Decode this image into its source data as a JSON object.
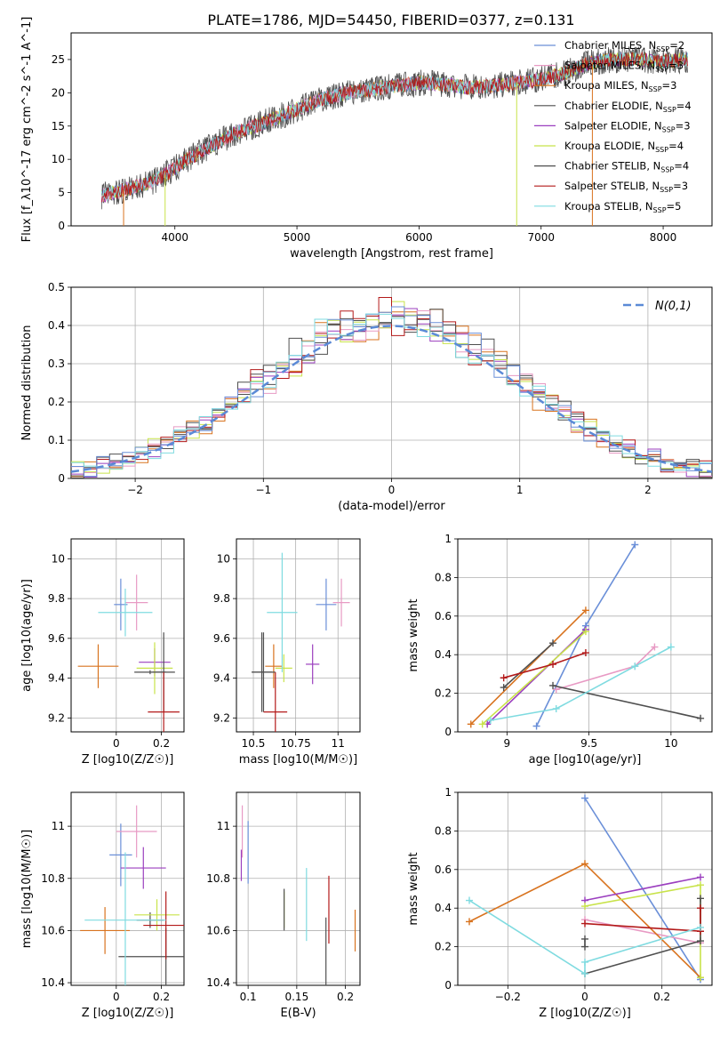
{
  "figure_title": "PLATE=1786, MJD=54450, FIBERID=0377, z=0.131",
  "models": [
    {
      "name": "Chabrier MILES",
      "nssp": "2",
      "color": "#6a8fd8"
    },
    {
      "name": "Salpeter MILES",
      "nssp": "3",
      "color": "#e89ac4"
    },
    {
      "name": "Kroupa MILES",
      "nssp": "3",
      "color": "#d8731f"
    },
    {
      "name": "Chabrier ELODIE",
      "nssp": "4",
      "color": "#4f4f4f"
    },
    {
      "name": "Salpeter ELODIE",
      "nssp": "3",
      "color": "#9b3fbf"
    },
    {
      "name": "Kroupa ELODIE",
      "nssp": "4",
      "color": "#c8e34a"
    },
    {
      "name": "Chabrier STELIB",
      "nssp": "4",
      "color": "#4f4f4f"
    },
    {
      "name": "Salpeter STELIB",
      "nssp": "3",
      "color": "#b31a1a"
    },
    {
      "name": "Kroupa STELIB",
      "nssp": "5",
      "color": "#7fdbe0"
    }
  ],
  "chart_data": [
    {
      "id": "spectrum",
      "type": "line",
      "xlabel": "wavelength [Angstrom, rest frame]",
      "ylabel": "Flux [f_λ10^-17 erg cm^-2 s^-1 A^-1]",
      "xlim": [
        3150,
        8400
      ],
      "ylim": [
        0,
        29
      ],
      "xticks": [
        4000,
        5000,
        6000,
        7000,
        8000
      ],
      "yticks": [
        0,
        5,
        10,
        15,
        20,
        25
      ],
      "legend": "upper right",
      "continuum": [
        [
          3400,
          4.5
        ],
        [
          3600,
          5.5
        ],
        [
          3800,
          6.5
        ],
        [
          3950,
          8
        ],
        [
          4100,
          10
        ],
        [
          4300,
          12
        ],
        [
          4500,
          14
        ],
        [
          4800,
          16
        ],
        [
          5000,
          17.5
        ],
        [
          5200,
          19
        ],
        [
          5400,
          20
        ],
        [
          5600,
          20.5
        ],
        [
          5800,
          21
        ],
        [
          6000,
          21.5
        ],
        [
          6200,
          21.3
        ],
        [
          6400,
          20.8
        ],
        [
          6600,
          21
        ],
        [
          6800,
          21.5
        ],
        [
          7000,
          22
        ],
        [
          7200,
          23
        ],
        [
          7400,
          24.5
        ],
        [
          7600,
          25
        ],
        [
          7800,
          25
        ],
        [
          8000,
          24.7
        ],
        [
          8200,
          25
        ]
      ],
      "series_note": ""
    },
    {
      "id": "residuals",
      "type": "line",
      "xlabel": "(data-model)/error",
      "ylabel": "Normed distribution",
      "xlim": [
        -2.5,
        2.5
      ],
      "ylim": [
        0,
        0.5
      ],
      "xticks": [
        -2,
        -1,
        0,
        1,
        2
      ],
      "yticks": [
        0.0,
        0.1,
        0.2,
        0.3,
        0.4,
        0.5
      ],
      "legend": "upper right",
      "reference_label": "N(0,1)",
      "reference_color": "#5b8ad6"
    },
    {
      "id": "age_vs_Z",
      "type": "scatter",
      "xlabel": "Z [log10(Z/Z☉)]",
      "ylabel": "age  [log10(age/yr)]",
      "xlim": [
        -0.2,
        0.3
      ],
      "ylim": [
        9.13,
        10.1
      ],
      "xticks": [
        0.0,
        0.2
      ],
      "yticks": [
        9.2,
        9.4,
        9.6,
        9.8,
        10.0
      ],
      "points": [
        {
          "model": 0,
          "x": 0.02,
          "y": 9.77,
          "xerr": 0.03,
          "yerr": 0.13
        },
        {
          "model": 1,
          "x": 0.09,
          "y": 9.78,
          "xerr": 0.05,
          "yerr": 0.14
        },
        {
          "model": 2,
          "x": -0.08,
          "y": 9.46,
          "xerr": 0.09,
          "yerr": 0.11
        },
        {
          "model": 3,
          "x": 0.15,
          "y": 9.43,
          "xerr": 0.07,
          "yerr": 0.01
        },
        {
          "model": 4,
          "x": 0.17,
          "y": 9.48,
          "xerr": 0.07,
          "yerr": 0.07
        },
        {
          "model": 5,
          "x": 0.17,
          "y": 9.45,
          "xerr": 0.08,
          "yerr": 0.13
        },
        {
          "model": 6,
          "x": 0.21,
          "y": 9.43,
          "xerr": 0.05,
          "yerr": 0.2
        },
        {
          "model": 7,
          "x": 0.21,
          "y": 9.23,
          "xerr": 0.07,
          "yerr": 0.2
        },
        {
          "model": 8,
          "x": 0.04,
          "y": 9.73,
          "xerr": 0.12,
          "yerr": 0.12
        }
      ]
    },
    {
      "id": "age_vs_mass",
      "type": "scatter",
      "xlabel": "mass [log10(M/M☉)]",
      "ylabel": "",
      "xlim": [
        10.4,
        11.13
      ],
      "ylim": [
        9.13,
        10.1
      ],
      "xticks": [
        10.5,
        10.75,
        11.0
      ],
      "yticks": [
        9.2,
        9.4,
        9.6,
        9.8,
        10.0
      ],
      "points": [
        {
          "model": 0,
          "x": 10.93,
          "y": 9.77,
          "xerr": 0.06,
          "yerr": 0.13
        },
        {
          "model": 1,
          "x": 11.02,
          "y": 9.78,
          "xerr": 0.05,
          "yerr": 0.12
        },
        {
          "model": 2,
          "x": 10.62,
          "y": 9.46,
          "xerr": 0.05,
          "yerr": 0.11
        },
        {
          "model": 3,
          "x": 10.55,
          "y": 9.43,
          "xerr": 0.06,
          "yerr": 0.2
        },
        {
          "model": 4,
          "x": 10.85,
          "y": 9.47,
          "xerr": 0.04,
          "yerr": 0.1
        },
        {
          "model": 5,
          "x": 10.68,
          "y": 9.45,
          "xerr": 0.05,
          "yerr": 0.07
        },
        {
          "model": 6,
          "x": 10.56,
          "y": 9.43,
          "xerr": 0.07,
          "yerr": 0.2
        },
        {
          "model": 7,
          "x": 10.63,
          "y": 9.23,
          "xerr": 0.07,
          "yerr": 0.2
        },
        {
          "model": 8,
          "x": 10.67,
          "y": 9.73,
          "xerr": 0.09,
          "yerr": 0.3
        }
      ]
    },
    {
      "id": "weight_vs_age",
      "type": "line",
      "xlabel": "age  [log10(age/yr)]",
      "ylabel": "mass weight",
      "xlim": [
        8.7,
        10.25
      ],
      "ylim": [
        0.0,
        1.0
      ],
      "xticks": [
        9.0,
        9.5,
        10.0
      ],
      "yticks": [
        0.0,
        0.2,
        0.4,
        0.6,
        0.8,
        1.0
      ],
      "series": [
        {
          "model": 0,
          "points": [
            [
              9.18,
              0.03
            ],
            [
              9.48,
              0.55
            ],
            [
              9.78,
              0.97
            ]
          ]
        },
        {
          "model": 1,
          "points": [
            [
              9.3,
              0.22
            ],
            [
              9.78,
              0.34
            ],
            [
              9.9,
              0.44
            ]
          ]
        },
        {
          "model": 2,
          "points": [
            [
              8.78,
              0.04
            ],
            [
              9.48,
              0.63
            ]
          ]
        },
        {
          "model": 3,
          "points": [
            [
              8.98,
              0.23
            ],
            [
              9.28,
              0.46
            ]
          ]
        },
        {
          "model": 4,
          "points": [
            [
              8.88,
              0.04
            ],
            [
              9.48,
              0.53
            ]
          ]
        },
        {
          "model": 5,
          "points": [
            [
              8.85,
              0.04
            ],
            [
              9.48,
              0.52
            ]
          ]
        },
        {
          "model": 6,
          "points": [
            [
              9.28,
              0.24
            ],
            [
              10.18,
              0.07
            ]
          ]
        },
        {
          "model": 7,
          "points": [
            [
              8.98,
              0.28
            ],
            [
              9.28,
              0.35
            ],
            [
              9.48,
              0.41
            ]
          ]
        },
        {
          "model": 8,
          "points": [
            [
              8.9,
              0.06
            ],
            [
              9.3,
              0.12
            ],
            [
              9.78,
              0.34
            ],
            [
              10.0,
              0.44
            ]
          ]
        }
      ]
    },
    {
      "id": "mass_vs_Z",
      "type": "scatter",
      "xlabel": "Z [log10(Z/Z☉)]",
      "ylabel": "mass [log10(M/M☉)]",
      "xlim": [
        -0.2,
        0.3
      ],
      "ylim": [
        10.39,
        11.13
      ],
      "xticks": [
        0.0,
        0.2
      ],
      "yticks": [
        10.4,
        10.6,
        10.8,
        11.0
      ],
      "points": [
        {
          "model": 0,
          "x": 0.02,
          "y": 10.89,
          "xerr": 0.05,
          "yerr": 0.12
        },
        {
          "model": 1,
          "x": 0.09,
          "y": 10.98,
          "xerr": 0.09,
          "yerr": 0.1
        },
        {
          "model": 2,
          "x": -0.05,
          "y": 10.6,
          "xerr": 0.11,
          "yerr": 0.09
        },
        {
          "model": 3,
          "x": 0.15,
          "y": 10.64,
          "xerr": 0.06,
          "yerr": 0.03
        },
        {
          "model": 4,
          "x": 0.12,
          "y": 10.84,
          "xerr": 0.1,
          "yerr": 0.08
        },
        {
          "model": 5,
          "x": 0.18,
          "y": 10.66,
          "xerr": 0.1,
          "yerr": 0.06
        },
        {
          "model": 6,
          "x": 0.22,
          "y": 10.5,
          "xerr": 0.21,
          "yerr": 0.11
        },
        {
          "model": 7,
          "x": 0.22,
          "y": 10.62,
          "xerr": 0.1,
          "yerr": 0.13
        },
        {
          "model": 8,
          "x": 0.04,
          "y": 10.64,
          "xerr": 0.18,
          "yerr": 0.26
        }
      ]
    },
    {
      "id": "mass_vs_ebv",
      "type": "scatter",
      "xlabel": "E(B-V)",
      "ylabel": "",
      "xlim": [
        0.088,
        0.215
      ],
      "ylim": [
        10.39,
        11.13
      ],
      "xticks": [
        0.1,
        0.15,
        0.2
      ],
      "yticks": [
        10.4,
        10.6,
        10.8,
        11.0
      ],
      "points": [
        {
          "model": 0,
          "x": 0.1,
          "y": 10.9,
          "xerr": 0.0,
          "yerr": 0.12
        },
        {
          "model": 1,
          "x": 0.094,
          "y": 10.98,
          "xerr": 0.0,
          "yerr": 0.1
        },
        {
          "model": 2,
          "x": 0.21,
          "y": 10.6,
          "xerr": 0.0,
          "yerr": 0.08
        },
        {
          "model": 3,
          "x": 0.18,
          "y": 10.5,
          "xerr": 0.0,
          "yerr": 0.15
        },
        {
          "model": 4,
          "x": 0.093,
          "y": 10.85,
          "xerr": 0.0,
          "yerr": 0.06
        },
        {
          "model": 5,
          "x": 0.137,
          "y": 10.68,
          "xerr": 0.0,
          "yerr": 0.07
        },
        {
          "model": 6,
          "x": 0.137,
          "y": 10.68,
          "xerr": 0.0,
          "yerr": 0.08
        },
        {
          "model": 7,
          "x": 0.183,
          "y": 10.68,
          "xerr": 0.0,
          "yerr": 0.13
        },
        {
          "model": 8,
          "x": 0.16,
          "y": 10.7,
          "xerr": 0.0,
          "yerr": 0.14
        }
      ]
    },
    {
      "id": "weight_vs_Z",
      "type": "line",
      "xlabel": "Z [log10(Z/Z☉)]",
      "ylabel": "mass weight",
      "xlim": [
        -0.33,
        0.33
      ],
      "ylim": [
        0.0,
        1.0
      ],
      "xticks": [
        -0.2,
        0.0,
        0.2
      ],
      "yticks": [
        0.0,
        0.2,
        0.4,
        0.6,
        0.8,
        1.0
      ],
      "series": [
        {
          "model": 0,
          "points": [
            [
              0.0,
              0.97
            ],
            [
              0.3,
              0.03
            ]
          ]
        },
        {
          "model": 1,
          "points": [
            [
              0.0,
              0.34
            ],
            [
              0.3,
              0.22
            ]
          ]
        },
        {
          "model": 2,
          "points": [
            [
              -0.3,
              0.33
            ],
            [
              0.0,
              0.63
            ],
            [
              0.3,
              0.04
            ]
          ]
        },
        {
          "model": 3,
          "points": [
            [
              0.0,
              0.24
            ],
            [
              0.0,
              0.2
            ]
          ]
        },
        {
          "model": 4,
          "points": [
            [
              0.0,
              0.44
            ],
            [
              0.3,
              0.56
            ]
          ]
        },
        {
          "model": 5,
          "points": [
            [
              0.0,
              0.41
            ],
            [
              0.3,
              0.52
            ],
            [
              0.3,
              0.04
            ]
          ]
        },
        {
          "model": 6,
          "points": [
            [
              0.0,
              0.06
            ],
            [
              0.3,
              0.23
            ],
            [
              0.3,
              0.45
            ]
          ]
        },
        {
          "model": 7,
          "points": [
            [
              0.0,
              0.32
            ],
            [
              0.3,
              0.28
            ],
            [
              0.3,
              0.4
            ]
          ]
        },
        {
          "model": 8,
          "points": [
            [
              -0.3,
              0.44
            ],
            [
              0.0,
              0.06
            ],
            [
              0.0,
              0.12
            ],
            [
              0.3,
              0.3
            ]
          ]
        }
      ]
    }
  ]
}
